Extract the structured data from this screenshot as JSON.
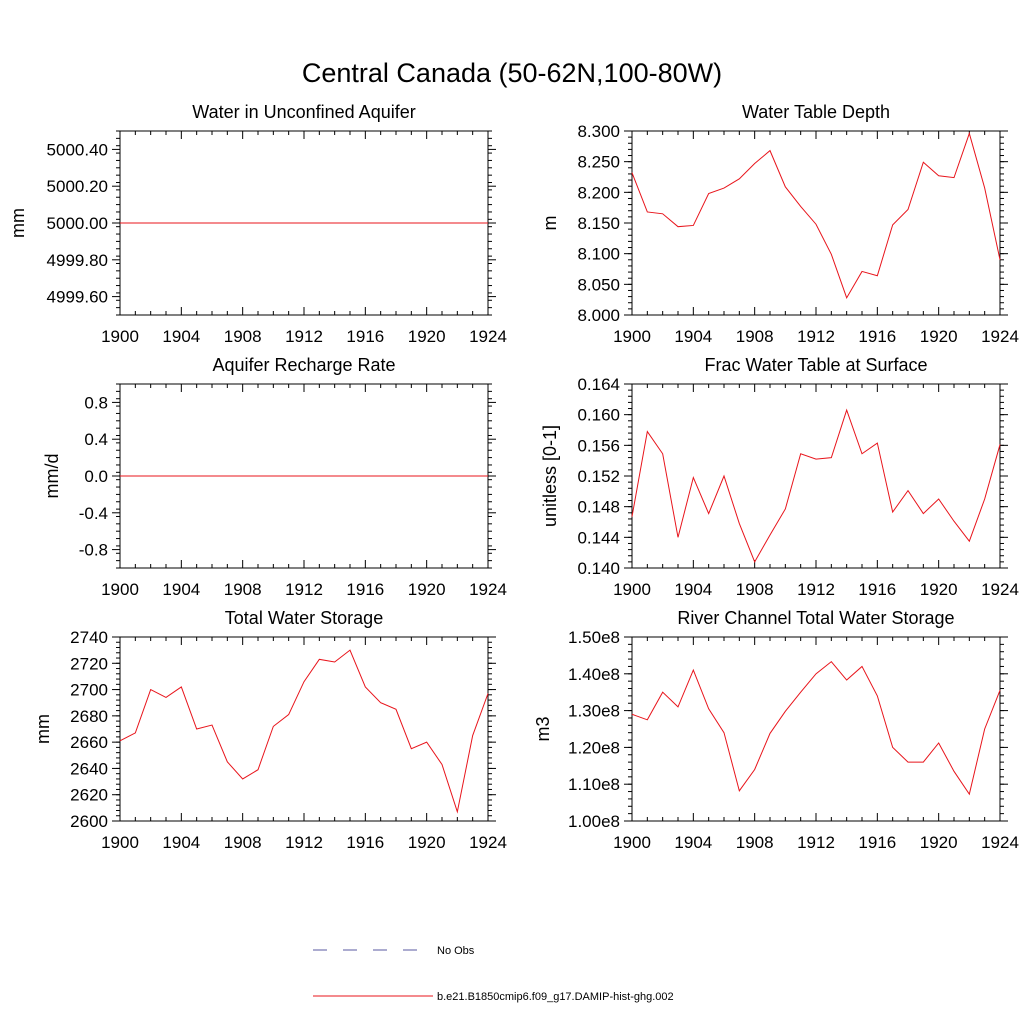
{
  "title": "Central Canada (50-62N,100-80W)",
  "legend": {
    "items": [
      {
        "label": "No Obs",
        "style": "dashed",
        "color": "#5a5aa0"
      },
      {
        "label": "b.e21.B1850cmip6.f09_g17.DAMIP-hist-ghg.002",
        "style": "solid",
        "color": "#e8141b"
      }
    ]
  },
  "chart_data": [
    {
      "type": "line",
      "title": "Water in Unconfined Aquifer",
      "ylabel": "mm",
      "xlabel": "",
      "xlim": [
        1900,
        1924
      ],
      "ylim": [
        4999.5,
        5000.5
      ],
      "x_ticks": [
        1900,
        1904,
        1908,
        1912,
        1916,
        1920,
        1924
      ],
      "y_ticks": [
        4999.6,
        5000.0,
        5000.4
      ],
      "y_tick_labels": [
        "4999.60",
        "4999.80",
        "5000.00",
        "5000.20",
        "5000.40"
      ],
      "y_tick_values": [
        4999.6,
        4999.8,
        5000.0,
        5000.2,
        5000.4
      ],
      "y_minor_step": 0.04,
      "x": [
        1900,
        1901,
        1902,
        1903,
        1904,
        1905,
        1906,
        1907,
        1908,
        1909,
        1910,
        1911,
        1912,
        1913,
        1914,
        1915,
        1916,
        1917,
        1918,
        1919,
        1920,
        1921,
        1922,
        1923,
        1924
      ],
      "series": [
        {
          "color": "#e8141b",
          "values": [
            5000,
            5000,
            5000,
            5000,
            5000,
            5000,
            5000,
            5000,
            5000,
            5000,
            5000,
            5000,
            5000,
            5000,
            5000,
            5000,
            5000,
            5000,
            5000,
            5000,
            5000,
            5000,
            5000,
            5000,
            5000
          ]
        }
      ]
    },
    {
      "type": "line",
      "title": "Water Table Depth",
      "ylabel": "m",
      "xlabel": "",
      "xlim": [
        1900,
        1924
      ],
      "ylim": [
        8.0,
        8.3
      ],
      "x_ticks": [
        1900,
        1904,
        1908,
        1912,
        1916,
        1920,
        1924
      ],
      "y_tick_labels": [
        "8.000",
        "8.050",
        "8.100",
        "8.150",
        "8.200",
        "8.250",
        "8.300"
      ],
      "y_tick_values": [
        8.0,
        8.05,
        8.1,
        8.15,
        8.2,
        8.25,
        8.3
      ],
      "y_minor_step": 0.01,
      "x": [
        1900,
        1901,
        1902,
        1903,
        1904,
        1905,
        1906,
        1907,
        1908,
        1909,
        1910,
        1911,
        1912,
        1913,
        1914,
        1915,
        1916,
        1917,
        1918,
        1919,
        1920,
        1921,
        1922,
        1923,
        1924
      ],
      "series": [
        {
          "color": "#e8141b",
          "values": [
            8.232,
            8.168,
            8.165,
            8.144,
            8.146,
            8.198,
            8.207,
            8.222,
            8.247,
            8.268,
            8.209,
            8.177,
            8.148,
            8.099,
            8.028,
            8.071,
            8.064,
            8.147,
            8.172,
            8.249,
            8.227,
            8.224,
            8.296,
            8.207,
            8.09
          ]
        }
      ]
    },
    {
      "type": "line",
      "title": "Aquifer Recharge Rate",
      "ylabel": "mm/d",
      "xlabel": "",
      "xlim": [
        1900,
        1924
      ],
      "ylim": [
        -1.0,
        1.0
      ],
      "x_ticks": [
        1900,
        1904,
        1908,
        1912,
        1916,
        1920,
        1924
      ],
      "y_tick_labels": [
        "-0.8",
        "-0.4",
        "0.0",
        "0.4",
        "0.8"
      ],
      "y_tick_values": [
        -0.8,
        -0.4,
        0.0,
        0.4,
        0.8
      ],
      "y_minor_step": 0.08,
      "x": [
        1900,
        1901,
        1902,
        1903,
        1904,
        1905,
        1906,
        1907,
        1908,
        1909,
        1910,
        1911,
        1912,
        1913,
        1914,
        1915,
        1916,
        1917,
        1918,
        1919,
        1920,
        1921,
        1922,
        1923,
        1924
      ],
      "series": [
        {
          "color": "#e8141b",
          "values": [
            0,
            0,
            0,
            0,
            0,
            0,
            0,
            0,
            0,
            0,
            0,
            0,
            0,
            0,
            0,
            0,
            0,
            0,
            0,
            0,
            0,
            0,
            0,
            0,
            0
          ]
        }
      ]
    },
    {
      "type": "line",
      "title": "Frac Water Table at Surface",
      "ylabel": "unitless [0-1]",
      "xlabel": "",
      "xlim": [
        1900,
        1924
      ],
      "ylim": [
        0.14,
        0.164
      ],
      "x_ticks": [
        1900,
        1904,
        1908,
        1912,
        1916,
        1920,
        1924
      ],
      "y_tick_labels": [
        "0.140",
        "0.144",
        "0.148",
        "0.152",
        "0.156",
        "0.160",
        "0.164"
      ],
      "y_tick_values": [
        0.14,
        0.144,
        0.148,
        0.152,
        0.156,
        0.16,
        0.164
      ],
      "y_minor_step": 0.0008,
      "x": [
        1900,
        1901,
        1902,
        1903,
        1904,
        1905,
        1906,
        1907,
        1908,
        1909,
        1910,
        1911,
        1912,
        1913,
        1914,
        1915,
        1916,
        1917,
        1918,
        1919,
        1920,
        1921,
        1922,
        1923,
        1924
      ],
      "series": [
        {
          "color": "#e8141b",
          "values": [
            0.1467,
            0.1578,
            0.1549,
            0.144,
            0.1518,
            0.1471,
            0.152,
            0.1458,
            0.1408,
            0.1443,
            0.1477,
            0.1549,
            0.1542,
            0.1544,
            0.1606,
            0.1549,
            0.1563,
            0.1473,
            0.1501,
            0.1471,
            0.149,
            0.1461,
            0.1435,
            0.149,
            0.1561
          ]
        }
      ]
    },
    {
      "type": "line",
      "title": "Total Water Storage",
      "ylabel": "mm",
      "xlabel": "",
      "xlim": [
        1900,
        1924
      ],
      "ylim": [
        2600,
        2740
      ],
      "x_ticks": [
        1900,
        1904,
        1908,
        1912,
        1916,
        1920,
        1924
      ],
      "y_tick_labels": [
        "2600",
        "2620",
        "2640",
        "2660",
        "2680",
        "2700",
        "2720",
        "2740"
      ],
      "y_tick_values": [
        2600,
        2620,
        2640,
        2660,
        2680,
        2700,
        2720,
        2740
      ],
      "y_minor_step": 4,
      "x": [
        1900,
        1901,
        1902,
        1903,
        1904,
        1905,
        1906,
        1907,
        1908,
        1909,
        1910,
        1911,
        1912,
        1913,
        1914,
        1915,
        1916,
        1917,
        1918,
        1919,
        1920,
        1921,
        1922,
        1923,
        1924
      ],
      "series": [
        {
          "color": "#e8141b",
          "values": [
            2661,
            2667,
            2700,
            2694,
            2702,
            2670,
            2673,
            2645,
            2632,
            2639,
            2672,
            2681,
            2706,
            2723,
            2721,
            2730,
            2702,
            2690,
            2685,
            2655,
            2660,
            2643,
            2607,
            2665,
            2697
          ]
        }
      ]
    },
    {
      "type": "line",
      "title": "River Channel Total Water Storage",
      "ylabel": "m3",
      "xlabel": "",
      "xlim": [
        1900,
        1924
      ],
      "ylim": [
        100000000,
        150000000
      ],
      "x_ticks": [
        1900,
        1904,
        1908,
        1912,
        1916,
        1920,
        1924
      ],
      "y_tick_labels": [
        "1.00e8",
        "1.10e8",
        "1.20e8",
        "1.30e8",
        "1.40e8",
        "1.50e8"
      ],
      "y_tick_values": [
        100000000,
        110000000,
        120000000,
        130000000,
        140000000,
        150000000
      ],
      "y_minor_step": 2000000,
      "x": [
        1900,
        1901,
        1902,
        1903,
        1904,
        1905,
        1906,
        1907,
        1908,
        1909,
        1910,
        1911,
        1912,
        1913,
        1914,
        1915,
        1916,
        1917,
        1918,
        1919,
        1920,
        1921,
        1922,
        1923,
        1924
      ],
      "series": [
        {
          "color": "#e8141b",
          "values": [
            129000000,
            127500000,
            135000000,
            131000000,
            141000000,
            130500000,
            124000000,
            108200000,
            114000000,
            123800000,
            129800000,
            135000000,
            140000000,
            143300000,
            138300000,
            142000000,
            134000000,
            120000000,
            116000000,
            116000000,
            121200000,
            113500000,
            107300000,
            125000000,
            135500000
          ]
        }
      ]
    }
  ]
}
